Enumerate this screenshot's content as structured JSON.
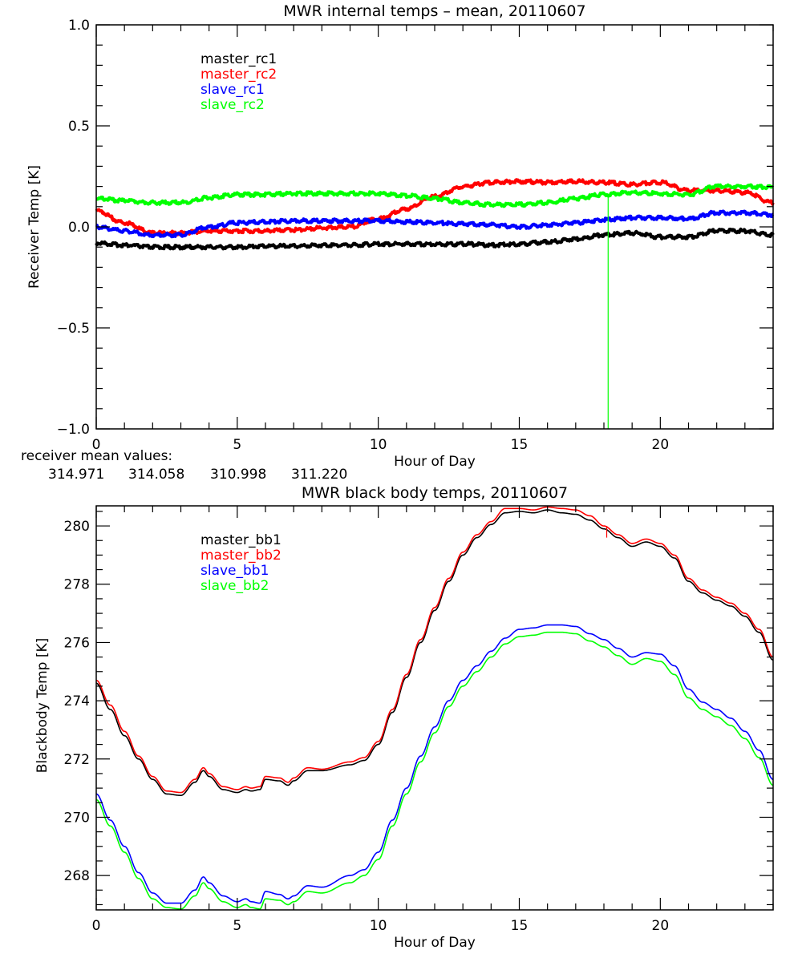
{
  "chart_data": [
    {
      "type": "line",
      "title": "MWR internal temps – mean, 20110607",
      "xlabel": "Hour of Day",
      "ylabel": "Receiver Temp [K]",
      "xlim": [
        0,
        24
      ],
      "ylim": [
        -1.0,
        1.0
      ],
      "x_ticks": [
        0,
        5,
        10,
        15,
        20
      ],
      "x_tick_labels": [
        "0",
        "5",
        "10",
        "15",
        "20"
      ],
      "y_ticks": [
        -1.0,
        -0.5,
        0.0,
        0.5,
        1.0
      ],
      "y_tick_labels": [
        "−1.0",
        "−0.5",
        "0.0",
        "0.5",
        "1.0"
      ],
      "x_minor_step": 1,
      "y_minor_step": 0.1,
      "legend_position": "top-left",
      "x": [
        0,
        1,
        2,
        3,
        4,
        5,
        6,
        7,
        8,
        9,
        10,
        11,
        12,
        13,
        14,
        15,
        16,
        17,
        18,
        19,
        20,
        21,
        22,
        23,
        24
      ],
      "series": [
        {
          "name": "master_rc1",
          "color": "#000000",
          "values": [
            -0.08,
            -0.09,
            -0.1,
            -0.1,
            -0.1,
            -0.1,
            -0.095,
            -0.095,
            -0.09,
            -0.09,
            -0.085,
            -0.085,
            -0.085,
            -0.085,
            -0.09,
            -0.085,
            -0.075,
            -0.06,
            -0.04,
            -0.03,
            -0.05,
            -0.05,
            -0.02,
            -0.02,
            -0.04
          ]
        },
        {
          "name": "master_rc2",
          "color": "#ff0000",
          "values": [
            0.08,
            0.02,
            -0.03,
            -0.03,
            -0.02,
            -0.02,
            -0.02,
            -0.015,
            -0.005,
            0.0,
            0.04,
            0.09,
            0.15,
            0.2,
            0.22,
            0.225,
            0.22,
            0.225,
            0.22,
            0.21,
            0.22,
            0.18,
            0.18,
            0.17,
            0.12
          ]
        },
        {
          "name": "slave_rc1",
          "color": "#0000ff",
          "values": [
            0.0,
            -0.02,
            -0.04,
            -0.04,
            0.0,
            0.02,
            0.025,
            0.03,
            0.03,
            0.03,
            0.03,
            0.025,
            0.02,
            0.015,
            0.01,
            0.0,
            0.01,
            0.02,
            0.035,
            0.045,
            0.045,
            0.04,
            0.07,
            0.07,
            0.06
          ]
        },
        {
          "name": "slave_rc2",
          "color": "#00ff00",
          "values": [
            0.14,
            0.13,
            0.12,
            0.12,
            0.145,
            0.16,
            0.16,
            0.165,
            0.165,
            0.165,
            0.165,
            0.155,
            0.14,
            0.12,
            0.11,
            0.11,
            0.12,
            0.14,
            0.16,
            0.17,
            0.165,
            0.16,
            0.2,
            0.2,
            0.195
          ]
        }
      ],
      "spike": {
        "series": "slave_rc2",
        "x": 18.15,
        "from": 0.16,
        "to": -1.0
      },
      "annotations": {
        "receiver_mean_label": "receiver mean values:",
        "receiver_means": [
          {
            "value": "314.971",
            "color": "#000000"
          },
          {
            "value": "314.058",
            "color": "#ff0000"
          },
          {
            "value": "310.998",
            "color": "#0000ff"
          },
          {
            "value": "311.220",
            "color": "#00ff00"
          }
        ]
      }
    },
    {
      "type": "line",
      "title": "MWR black body temps, 20110607",
      "xlabel": "Hour of Day",
      "ylabel": "Blackbody Temp [K]",
      "xlim": [
        0,
        24
      ],
      "ylim": [
        266.82,
        280.69
      ],
      "x_ticks": [
        0,
        5,
        10,
        15,
        20
      ],
      "x_tick_labels": [
        "0",
        "5",
        "10",
        "15",
        "20"
      ],
      "y_ticks": [
        268,
        270,
        272,
        274,
        276,
        278,
        280
      ],
      "y_tick_labels": [
        "268",
        "270",
        "272",
        "274",
        "276",
        "278",
        "280"
      ],
      "x_minor_step": 1,
      "y_minor_step": 0.5,
      "legend_position": "top-left",
      "x": [
        0,
        0.5,
        1,
        1.5,
        2,
        2.5,
        3,
        3.5,
        3.8,
        4,
        4.5,
        5,
        5.3,
        5.5,
        5.8,
        6,
        6.5,
        6.8,
        7,
        7.5,
        8,
        9,
        9.5,
        10,
        10.5,
        11,
        11.5,
        12,
        12.5,
        13,
        13.5,
        14,
        14.5,
        15,
        15.5,
        16,
        16.5,
        17,
        17.5,
        18,
        18.5,
        19,
        19.5,
        20,
        20.5,
        21,
        21.5,
        22,
        22.5,
        23,
        23.5,
        24
      ],
      "series": [
        {
          "name": "master_bb1",
          "color": "#000000",
          "values": [
            274.6,
            273.7,
            272.8,
            272.0,
            271.3,
            270.8,
            270.75,
            271.2,
            271.6,
            271.4,
            270.95,
            270.85,
            270.95,
            270.9,
            270.95,
            271.3,
            271.25,
            271.1,
            271.25,
            271.6,
            271.6,
            271.8,
            271.95,
            272.5,
            273.6,
            274.8,
            276.0,
            277.1,
            278.1,
            279.0,
            279.6,
            280.05,
            280.45,
            280.5,
            280.45,
            280.55,
            280.45,
            280.4,
            280.2,
            279.9,
            279.6,
            279.3,
            279.45,
            279.3,
            278.9,
            278.1,
            277.7,
            277.45,
            277.25,
            276.9,
            276.35,
            275.4
          ]
        },
        {
          "name": "master_bb2",
          "color": "#ff0000",
          "values": [
            274.7,
            273.85,
            272.95,
            272.1,
            271.4,
            270.9,
            270.85,
            271.3,
            271.7,
            271.5,
            271.05,
            270.95,
            271.05,
            271.0,
            271.05,
            271.4,
            271.35,
            271.2,
            271.35,
            271.7,
            271.65,
            271.9,
            272.05,
            272.6,
            273.7,
            274.9,
            276.1,
            277.2,
            278.2,
            279.1,
            279.7,
            280.15,
            280.6,
            280.6,
            280.55,
            280.65,
            280.6,
            280.55,
            280.35,
            280.0,
            279.7,
            279.4,
            279.55,
            279.4,
            279.0,
            278.2,
            277.8,
            277.55,
            277.35,
            277.0,
            276.45,
            275.5
          ]
        },
        {
          "name": "slave_bb1",
          "color": "#0000ff",
          "values": [
            270.8,
            269.9,
            269.0,
            268.1,
            267.4,
            267.05,
            267.05,
            267.5,
            267.95,
            267.75,
            267.3,
            267.1,
            267.2,
            267.1,
            267.05,
            267.45,
            267.35,
            267.2,
            267.3,
            267.65,
            267.6,
            268.0,
            268.2,
            268.8,
            269.9,
            271.0,
            272.1,
            273.1,
            274.0,
            274.7,
            275.2,
            275.7,
            276.15,
            276.45,
            276.5,
            276.6,
            276.6,
            276.55,
            276.3,
            276.1,
            275.8,
            275.5,
            275.65,
            275.6,
            275.2,
            274.4,
            273.95,
            273.7,
            273.4,
            272.95,
            272.3,
            271.3
          ]
        },
        {
          "name": "slave_bb2",
          "color": "#00ff00",
          "values": [
            270.6,
            269.7,
            268.8,
            267.9,
            267.2,
            266.9,
            266.85,
            267.3,
            267.75,
            267.55,
            267.1,
            266.9,
            267.0,
            266.9,
            266.85,
            267.2,
            267.15,
            267.0,
            267.1,
            267.45,
            267.4,
            267.75,
            268.0,
            268.55,
            269.7,
            270.8,
            271.9,
            272.9,
            273.8,
            274.5,
            275.0,
            275.5,
            275.95,
            276.2,
            276.25,
            276.35,
            276.35,
            276.3,
            276.05,
            275.85,
            275.55,
            275.25,
            275.45,
            275.35,
            274.9,
            274.1,
            273.7,
            273.45,
            273.15,
            272.7,
            272.05,
            271.1
          ]
        }
      ],
      "spike": {
        "series": "master_bb2",
        "x": 18.1,
        "from": 280.0,
        "to": 279.6
      }
    }
  ]
}
